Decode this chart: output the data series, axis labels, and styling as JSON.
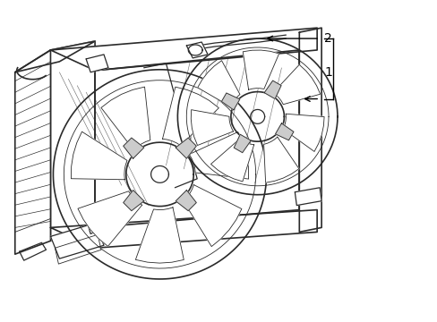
{
  "background_color": "#ffffff",
  "line_color": "#2a2a2a",
  "label_color": "#000000",
  "fig_width": 4.89,
  "fig_height": 3.6,
  "dpi": 100,
  "label1": "1",
  "label2": "2",
  "lw_main": 1.2,
  "lw_med": 0.9,
  "lw_thin": 0.6
}
